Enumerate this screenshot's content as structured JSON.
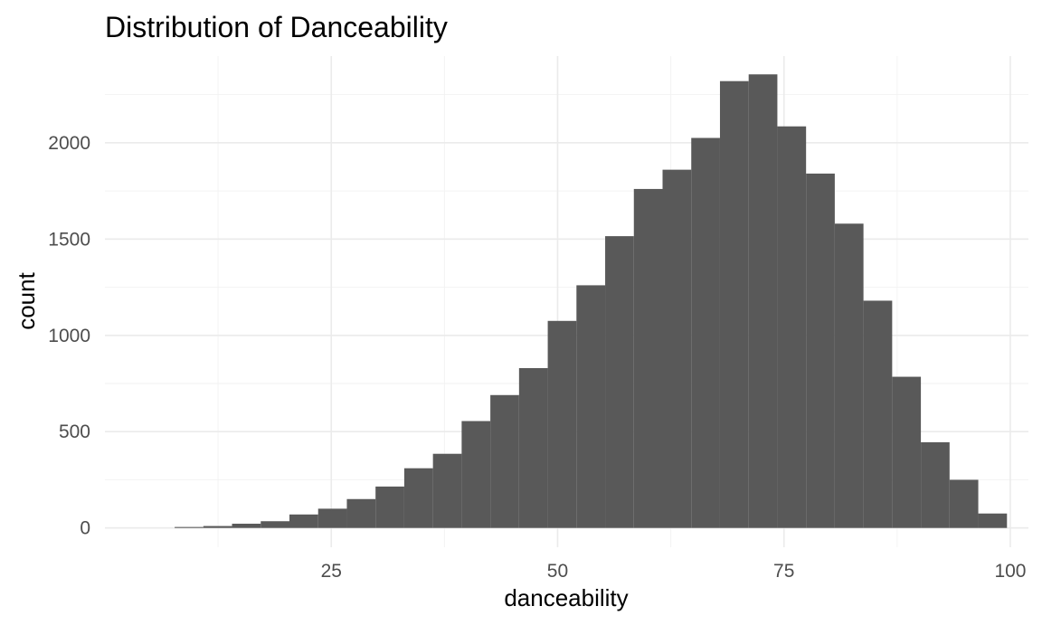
{
  "chart_data": {
    "type": "bar",
    "title": "Distribution of Danceability",
    "xlabel": "danceability",
    "ylabel": "count",
    "xlim": [
      0,
      102
    ],
    "ylim": [
      -100,
      2450
    ],
    "x_ticks": [
      25,
      50,
      75,
      100
    ],
    "y_ticks": [
      0,
      500,
      1000,
      1500,
      2000
    ],
    "grid": true,
    "legend": "none",
    "bar_color": "#595959",
    "bin_width": 3.17,
    "bins": [
      {
        "x0": 7.7,
        "x1": 10.87,
        "count": 5
      },
      {
        "x0": 10.87,
        "x1": 14.04,
        "count": 10
      },
      {
        "x0": 14.04,
        "x1": 17.21,
        "count": 22
      },
      {
        "x0": 17.21,
        "x1": 20.38,
        "count": 35
      },
      {
        "x0": 20.38,
        "x1": 23.55,
        "count": 70
      },
      {
        "x0": 23.55,
        "x1": 26.72,
        "count": 100
      },
      {
        "x0": 26.72,
        "x1": 29.89,
        "count": 150
      },
      {
        "x0": 29.89,
        "x1": 33.06,
        "count": 215
      },
      {
        "x0": 33.06,
        "x1": 36.23,
        "count": 310
      },
      {
        "x0": 36.23,
        "x1": 39.4,
        "count": 385
      },
      {
        "x0": 39.4,
        "x1": 42.57,
        "count": 555
      },
      {
        "x0": 42.57,
        "x1": 45.74,
        "count": 690
      },
      {
        "x0": 45.74,
        "x1": 48.91,
        "count": 830
      },
      {
        "x0": 48.91,
        "x1": 52.08,
        "count": 1075
      },
      {
        "x0": 52.08,
        "x1": 55.25,
        "count": 1260
      },
      {
        "x0": 55.25,
        "x1": 58.42,
        "count": 1515
      },
      {
        "x0": 58.42,
        "x1": 61.59,
        "count": 1760
      },
      {
        "x0": 61.59,
        "x1": 64.76,
        "count": 1860
      },
      {
        "x0": 64.76,
        "x1": 67.93,
        "count": 2025
      },
      {
        "x0": 67.93,
        "x1": 71.1,
        "count": 2320
      },
      {
        "x0": 71.1,
        "x1": 74.27,
        "count": 2355
      },
      {
        "x0": 74.27,
        "x1": 77.44,
        "count": 2085
      },
      {
        "x0": 77.44,
        "x1": 80.61,
        "count": 1840
      },
      {
        "x0": 80.61,
        "x1": 83.78,
        "count": 1580
      },
      {
        "x0": 83.78,
        "x1": 86.95,
        "count": 1180
      },
      {
        "x0": 86.95,
        "x1": 90.12,
        "count": 785
      },
      {
        "x0": 90.12,
        "x1": 93.29,
        "count": 445
      },
      {
        "x0": 93.29,
        "x1": 96.46,
        "count": 250
      },
      {
        "x0": 96.46,
        "x1": 99.63,
        "count": 75
      }
    ]
  }
}
